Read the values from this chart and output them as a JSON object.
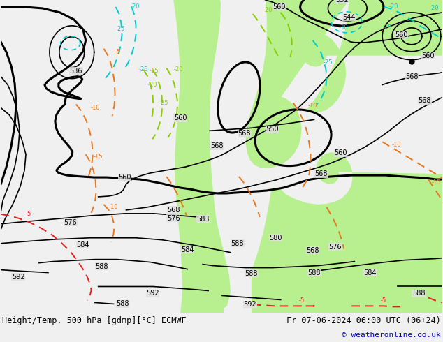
{
  "title_left": "Height/Temp. 500 hPa [gdmp][°C] ECMWF",
  "title_right": "Fr 07-06-2024 06:00 UTC (06+24)",
  "copyright": "© weatheronline.co.uk",
  "bg_color": "#e0e0e0",
  "green_color": "#b8f090",
  "gray_color": "#b0b0b0",
  "black": "#000000",
  "orange": "#e87820",
  "cyan": "#00cccc",
  "red": "#e82020",
  "green_temp": "#88cc00",
  "figsize": [
    6.34,
    4.9
  ],
  "dpi": 100
}
